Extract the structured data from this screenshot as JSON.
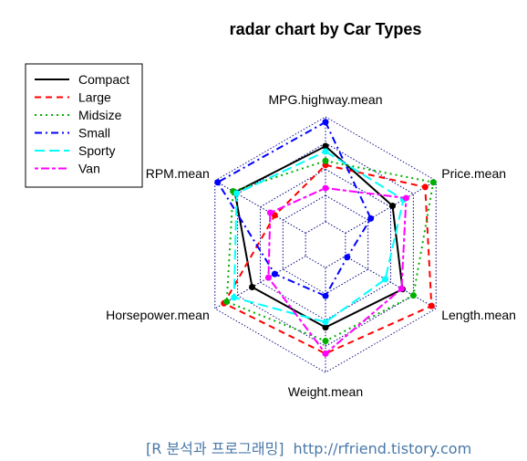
{
  "chart_data": {
    "type": "radar",
    "title": "radar chart by Car Types",
    "axes": [
      "MPG.highway.mean",
      "Price.mean",
      "Length.mean",
      "Weight.mean",
      "Horsepower.mean",
      "RPM.mean"
    ],
    "grid_levels": 4,
    "range": [
      0,
      1
    ],
    "legend_position": "top-left",
    "series": [
      {
        "name": "Compact",
        "color": "#000000",
        "dash": "solid",
        "values": [
          0.72,
          0.52,
          0.63,
          0.57,
          0.59,
          0.78
        ]
      },
      {
        "name": "Large",
        "color": "#ff0000",
        "dash": "dashed",
        "values": [
          0.54,
          0.88,
          0.95,
          0.82,
          0.9,
          0.34
        ]
      },
      {
        "name": "Midsize",
        "color": "#00b000",
        "dash": "dotted",
        "values": [
          0.58,
          0.97,
          0.75,
          0.7,
          0.87,
          0.8
        ]
      },
      {
        "name": "Small",
        "color": "#0000ff",
        "dash": "dashdot",
        "values": [
          0.95,
          0.28,
          0.02,
          0.27,
          0.34,
          0.97
        ]
      },
      {
        "name": "Sporty",
        "color": "#00ffff",
        "dash": "longdash",
        "values": [
          0.67,
          0.64,
          0.44,
          0.52,
          0.79,
          0.76
        ]
      },
      {
        "name": "Van",
        "color": "#ff00ff",
        "dash": "twodash",
        "values": [
          0.32,
          0.67,
          0.62,
          0.82,
          0.41,
          0.39
        ]
      }
    ]
  },
  "watermark": {
    "left": "[R 분석과 프로그래밍]",
    "right": "http://rfriend.tistory.com"
  }
}
